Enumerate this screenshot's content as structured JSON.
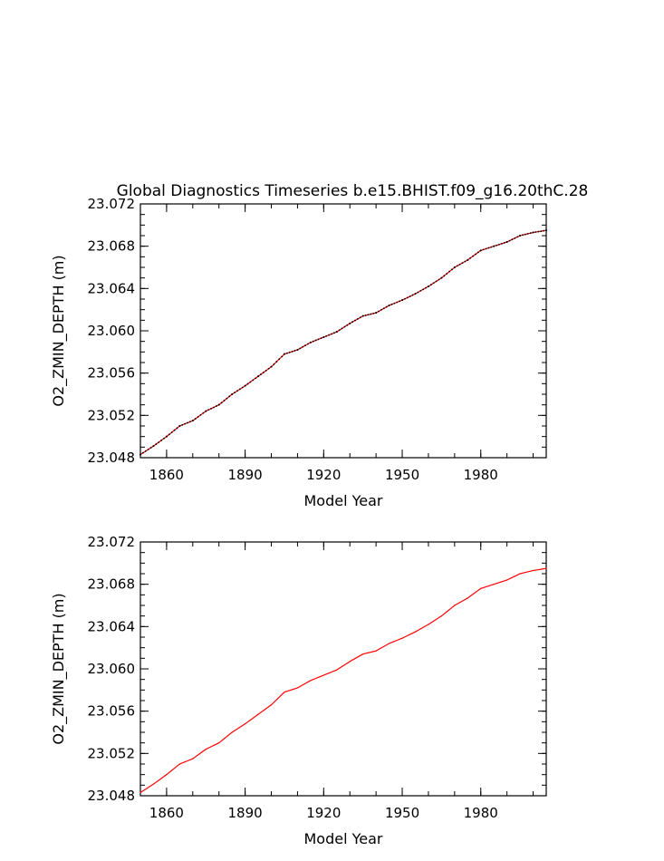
{
  "chart_data": [
    {
      "type": "line",
      "title": "Global Diagnostics Timeseries b.e15.BHIST.f09_g16.20thC.28",
      "xlabel": "Model Year",
      "ylabel": "O2_ZMIN_DEPTH (m)",
      "xlim": [
        1850,
        2005
      ],
      "ylim": [
        23.048,
        23.072
      ],
      "x_ticks": [
        "1860",
        "1890",
        "1920",
        "1950",
        "1980"
      ],
      "y_ticks": [
        "23.048",
        "23.052",
        "23.056",
        "23.060",
        "23.064",
        "23.068",
        "23.072"
      ],
      "series_color": "#ff0000",
      "overlay_marker_color": "#000000",
      "variant": "monthly values with black markers",
      "x": [
        1850,
        1855,
        1860,
        1865,
        1870,
        1875,
        1880,
        1885,
        1890,
        1895,
        1900,
        1905,
        1910,
        1915,
        1920,
        1925,
        1930,
        1935,
        1940,
        1945,
        1950,
        1955,
        1960,
        1965,
        1970,
        1975,
        1980,
        1985,
        1990,
        1995,
        2000,
        2005
      ],
      "y": [
        23.0483,
        23.0491,
        23.05,
        23.051,
        23.0515,
        23.0524,
        23.053,
        23.054,
        23.0548,
        23.0557,
        23.0566,
        23.0578,
        23.0582,
        23.0589,
        23.0594,
        23.0599,
        23.0607,
        23.0614,
        23.0617,
        23.0624,
        23.0629,
        23.0635,
        23.0642,
        23.065,
        23.066,
        23.0667,
        23.0676,
        23.068,
        23.0684,
        23.069,
        23.0693,
        23.0695
      ]
    },
    {
      "type": "line",
      "title": "",
      "xlabel": "Model Year",
      "ylabel": "O2_ZMIN_DEPTH (m)",
      "xlim": [
        1850,
        2005
      ],
      "ylim": [
        23.048,
        23.072
      ],
      "x_ticks": [
        "1860",
        "1890",
        "1920",
        "1950",
        "1980"
      ],
      "y_ticks": [
        "23.048",
        "23.052",
        "23.056",
        "23.060",
        "23.064",
        "23.068",
        "23.072"
      ],
      "series_color": "#ff0000",
      "variant": "annual smooth line",
      "x": [
        1850,
        1855,
        1860,
        1865,
        1870,
        1875,
        1880,
        1885,
        1890,
        1895,
        1900,
        1905,
        1910,
        1915,
        1920,
        1925,
        1930,
        1935,
        1940,
        1945,
        1950,
        1955,
        1960,
        1965,
        1970,
        1975,
        1980,
        1985,
        1990,
        1995,
        2000,
        2005
      ],
      "y": [
        23.0483,
        23.0491,
        23.05,
        23.051,
        23.0515,
        23.0524,
        23.053,
        23.054,
        23.0548,
        23.0557,
        23.0566,
        23.0578,
        23.0582,
        23.0589,
        23.0594,
        23.0599,
        23.0607,
        23.0614,
        23.0617,
        23.0624,
        23.0629,
        23.0635,
        23.0642,
        23.065,
        23.066,
        23.0667,
        23.0676,
        23.068,
        23.0684,
        23.069,
        23.0693,
        23.0695
      ]
    }
  ]
}
